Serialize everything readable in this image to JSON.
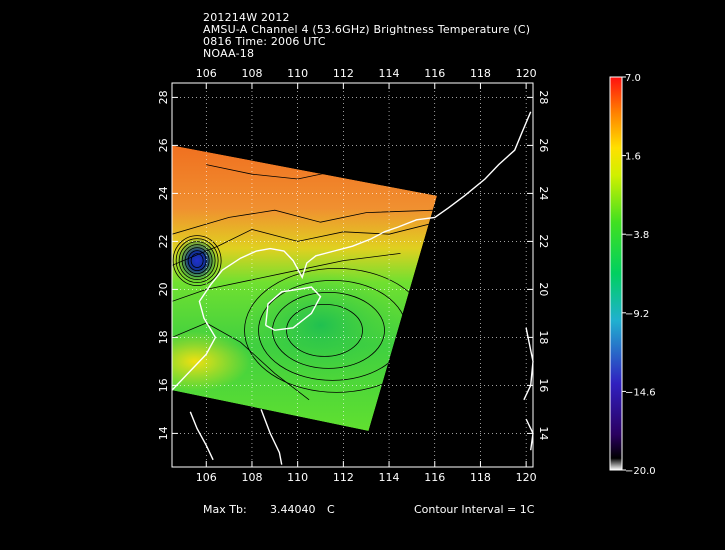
{
  "title_lines": [
    "201214W 2012",
    "AMSU-A Channel 4 (53.6GHz) Brightness Temperature (C)",
    "0816 Time: 2006 UTC",
    "NOAA-18"
  ],
  "footer": {
    "max_tb_label": "Max Tb:",
    "max_tb_value": "3.44040",
    "max_tb_unit": "C",
    "contour_interval": "Contour Interval = 1C"
  },
  "chart_data": {
    "type": "heatmap",
    "title": "AMSU-A Channel 4 (53.6GHz) Brightness Temperature (C)",
    "xlabel": "",
    "ylabel": "",
    "xlim": [
      104.5,
      120.3
    ],
    "ylim": [
      12.6,
      28.6
    ],
    "x_ticks": [
      106,
      108,
      110,
      112,
      114,
      116,
      118,
      120
    ],
    "y_ticks": [
      14,
      16,
      18,
      20,
      22,
      24,
      26,
      28
    ],
    "grid": true,
    "colorbar": {
      "min": -20.0,
      "max": 7.0,
      "tick_values": [
        7.0,
        1.6,
        -3.8,
        -9.2,
        -14.6,
        -20.0
      ],
      "tick_labels": [
        "7.0",
        "1.6",
        "−3.8",
        "−9.2",
        "−14.6",
        "−20.0"
      ],
      "placement": "right"
    },
    "swath": {
      "corners": [
        [
          104.5,
          26.0
        ],
        [
          116.1,
          23.9
        ],
        [
          113.1,
          14.1
        ],
        [
          104.5,
          15.8
        ]
      ]
    },
    "max_tb": 3.4404,
    "contour_interval_c": 1,
    "features": [
      {
        "label": "warm region north",
        "lon": 111.5,
        "lat": 24.5,
        "value": 3.0
      },
      {
        "label": "cold core",
        "lon": 105.6,
        "lat": 21.2,
        "value": -12.0
      },
      {
        "label": "green band south",
        "lon": 111.0,
        "lat": 18.5,
        "value": -4.5
      },
      {
        "label": "southwest yellow",
        "lon": 105.5,
        "lat": 17.0,
        "value": -1.0
      }
    ]
  }
}
